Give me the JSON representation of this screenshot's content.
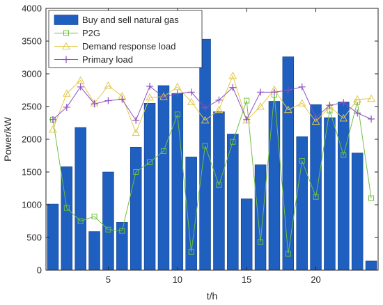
{
  "chart_data": {
    "type": "bar",
    "xlabel": "t/h",
    "ylabel": "Power/kW",
    "xlim": [
      0.5,
      24.5
    ],
    "ylim": [
      0,
      4000
    ],
    "x_ticks": [
      5,
      10,
      15,
      20
    ],
    "y_ticks": [
      0,
      500,
      1000,
      1500,
      2000,
      2500,
      3000,
      3500,
      4000
    ],
    "grid": false,
    "legend_position": "top-left",
    "x": [
      1,
      2,
      3,
      4,
      5,
      6,
      7,
      8,
      9,
      10,
      11,
      12,
      13,
      14,
      15,
      16,
      17,
      18,
      19,
      20,
      21,
      22,
      23,
      24
    ],
    "series": [
      {
        "name": "Buy and sell natural gas",
        "kind": "bar",
        "color": "#1f5fbf",
        "values": [
          1010,
          1580,
          2180,
          590,
          1500,
          730,
          1880,
          2550,
          2820,
          2700,
          1730,
          3530,
          2420,
          2080,
          1090,
          1610,
          2580,
          3260,
          2040,
          2530,
          2330,
          2570,
          1790,
          140
        ]
      },
      {
        "name": "P2G",
        "kind": "line",
        "marker": "square",
        "color": "#6fbf3f",
        "values": [
          2300,
          950,
          750,
          820,
          620,
          600,
          1500,
          1650,
          1820,
          2380,
          280,
          1900,
          1300,
          1960,
          2590,
          430,
          2680,
          250,
          1670,
          1120,
          2440,
          1760,
          2570,
          1100
        ]
      },
      {
        "name": "Demand response load",
        "kind": "line",
        "marker": "triangle",
        "color": "#e3c84a",
        "values": [
          2150,
          2700,
          2900,
          2550,
          2820,
          2660,
          2100,
          2640,
          2650,
          2800,
          2570,
          2290,
          2450,
          2970,
          2290,
          2500,
          2760,
          2450,
          2550,
          2270,
          2500,
          2320,
          2610,
          2620
        ]
      },
      {
        "name": "Primary load",
        "kind": "line",
        "marker": "plus",
        "color": "#8b4fbf",
        "values": [
          2300,
          2490,
          2800,
          2540,
          2590,
          2610,
          2290,
          2810,
          2640,
          2700,
          2720,
          2480,
          2600,
          2790,
          2300,
          2720,
          2720,
          2750,
          2800,
          2330,
          2520,
          2560,
          2400,
          2310
        ]
      }
    ]
  }
}
